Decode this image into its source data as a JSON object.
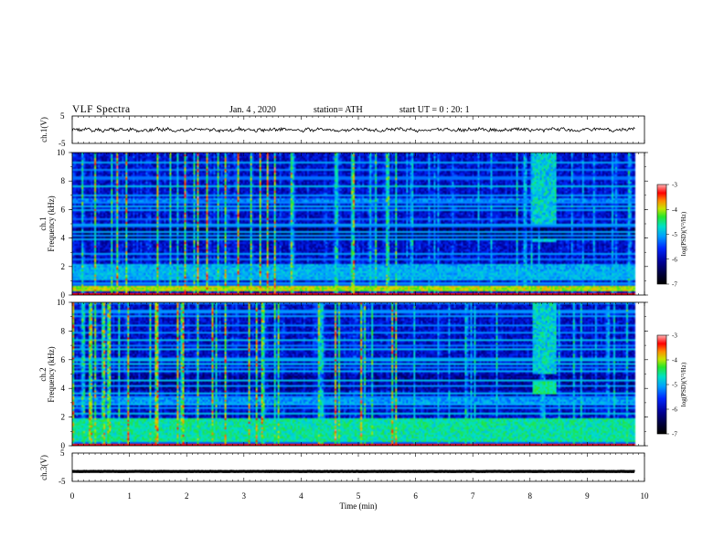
{
  "header": {
    "title": "VLF  Spectra",
    "date": "Jan. 4  , 2020",
    "station": "station= ATH",
    "start_ut": "start  UT  =   0 : 20: 1"
  },
  "chart_data": [
    {
      "type": "line",
      "panel": "ch.1",
      "ylabel": "ch.1(V)",
      "ylim": [
        -5,
        5
      ],
      "yticks": [
        "5",
        "-5"
      ],
      "xlim": [
        0,
        10
      ],
      "x_extent_min": [
        0,
        9.83
      ],
      "series": [
        {
          "approx_level_V": 0,
          "approx_amplitude_V": 0.8,
          "color": "#000000"
        }
      ]
    },
    {
      "type": "heatmap",
      "panel": "ch.1",
      "ylabel": "ch.1\nFrequency (kHz)",
      "ylim": [
        0,
        10
      ],
      "yticks": [
        "0",
        "2",
        "4",
        "6",
        "8",
        "10"
      ],
      "xlim": [
        0,
        10
      ],
      "colorbar": {
        "label": "log(PSD)(V²/Hz)",
        "range": [
          -7,
          -3
        ],
        "ticks": [
          "-3",
          "-4",
          "-5",
          "-6",
          "-7"
        ]
      },
      "features": [
        {
          "kind": "band",
          "freq_kHz": [
            0.2,
            0.6
          ],
          "level": -4.0
        },
        {
          "kind": "band",
          "freq_kHz": [
            1.0,
            2.2
          ],
          "level": -5.0
        },
        {
          "kind": "band",
          "freq_kHz": [
            6.5,
            6.8
          ],
          "level": -5.2
        },
        {
          "kind": "patch",
          "time_min": [
            8.05,
            8.45
          ],
          "freq_kHz": [
            3.7,
            4.0
          ],
          "level": -4.8
        }
      ]
    },
    {
      "type": "heatmap",
      "panel": "ch.2",
      "ylabel": "ch.2\nFrequency (kHz)",
      "ylim": [
        0,
        10
      ],
      "yticks": [
        "0",
        "2",
        "4",
        "6",
        "8",
        "10"
      ],
      "xlim": [
        0,
        10
      ],
      "colorbar": {
        "label": "log(PSD)(V²/Hz)",
        "range": [
          -7,
          -3
        ],
        "ticks": [
          "-3",
          "-4",
          "-5",
          "-6",
          "-7"
        ]
      },
      "features": [
        {
          "kind": "band",
          "freq_kHz": [
            0.3,
            1.9
          ],
          "level": -4.6
        },
        {
          "kind": "band",
          "freq_kHz": [
            2.8,
            3.3
          ],
          "level": -5.1
        },
        {
          "kind": "patch",
          "time_min": [
            8.05,
            8.45
          ],
          "freq_kHz": [
            3.6,
            4.5
          ],
          "level": -4.5
        }
      ]
    },
    {
      "type": "line",
      "panel": "ch.3",
      "ylabel": "ch.3(V)",
      "ylim": [
        -5,
        5
      ],
      "yticks": [
        "5",
        "-5"
      ],
      "xlim": [
        0,
        10
      ],
      "x_extent_min": [
        0,
        9.83
      ],
      "series": [
        {
          "approx_level_V": -1.5,
          "approx_amplitude_V": 0.1,
          "color": "#000000"
        }
      ]
    }
  ],
  "xaxis": {
    "label": "Time  (min)",
    "ticks": [
      "0",
      "1",
      "2",
      "3",
      "4",
      "5",
      "6",
      "7",
      "8",
      "9",
      "10"
    ]
  }
}
